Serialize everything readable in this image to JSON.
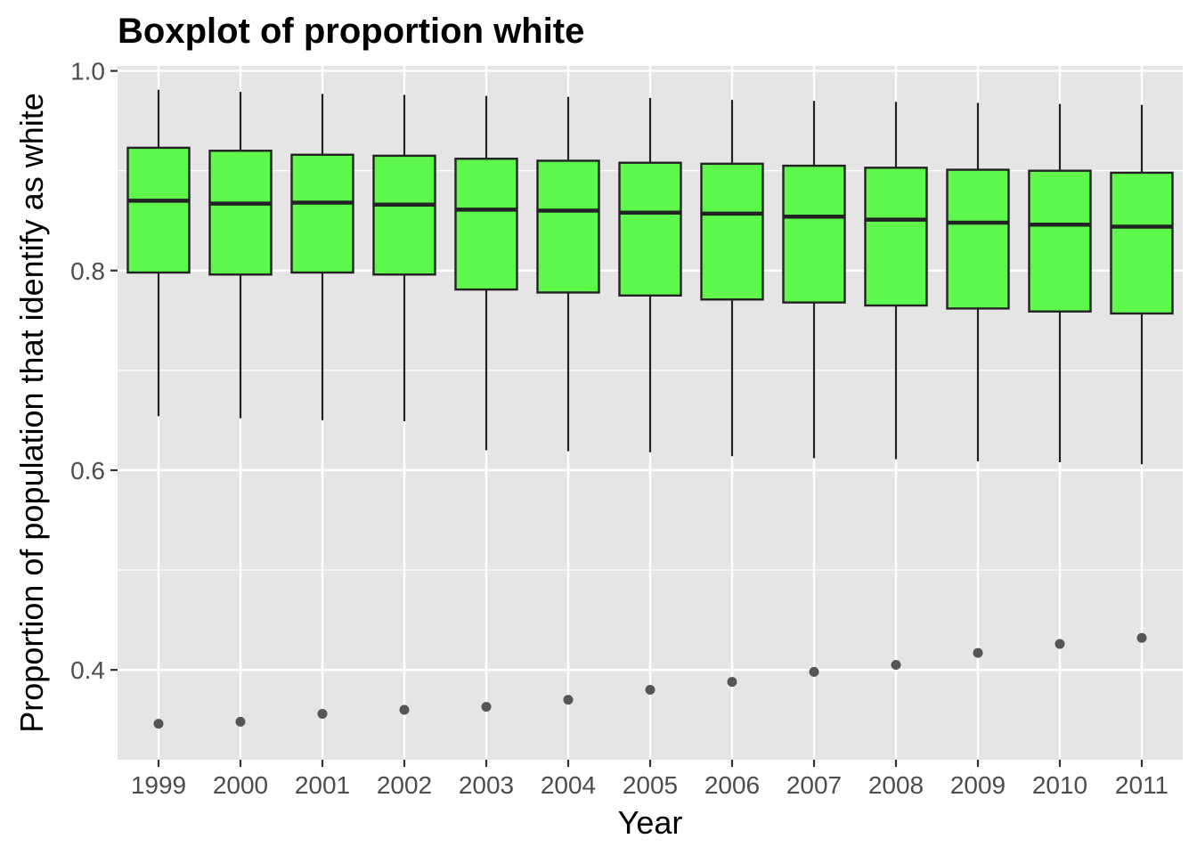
{
  "chart_data": {
    "type": "boxplot",
    "title": "Boxplot of proportion white",
    "xlabel": "Year",
    "ylabel": "Proportion of population that identify as white",
    "ylim": [
      0.31,
      1.005
    ],
    "y_ticks": [
      0.4,
      0.6,
      0.8,
      1.0
    ],
    "y_tick_labels": [
      "0.4",
      "0.6",
      "0.8",
      "1.0"
    ],
    "grid": true,
    "legend": "none",
    "colors": {
      "panel_background": "#e5e5e5",
      "grid": "#ffffff",
      "box_fill": "#5ef74c",
      "box_outline": "#222222",
      "whisker": "#222222",
      "outlier": "#555555"
    },
    "categories": [
      "1999",
      "2000",
      "2001",
      "2002",
      "2003",
      "2004",
      "2005",
      "2006",
      "2007",
      "2008",
      "2009",
      "2010",
      "2011"
    ],
    "boxes": [
      {
        "year": "1999",
        "min": 0.654,
        "q1": 0.798,
        "median": 0.87,
        "q3": 0.923,
        "max": 0.981,
        "outliers": [
          0.346
        ]
      },
      {
        "year": "2000",
        "min": 0.652,
        "q1": 0.796,
        "median": 0.867,
        "q3": 0.92,
        "max": 0.979,
        "outliers": [
          0.348
        ]
      },
      {
        "year": "2001",
        "min": 0.65,
        "q1": 0.798,
        "median": 0.868,
        "q3": 0.916,
        "max": 0.977,
        "outliers": [
          0.356
        ]
      },
      {
        "year": "2002",
        "min": 0.649,
        "q1": 0.796,
        "median": 0.866,
        "q3": 0.915,
        "max": 0.976,
        "outliers": [
          0.36
        ]
      },
      {
        "year": "2003",
        "min": 0.62,
        "q1": 0.781,
        "median": 0.861,
        "q3": 0.912,
        "max": 0.975,
        "outliers": [
          0.363
        ]
      },
      {
        "year": "2004",
        "min": 0.619,
        "q1": 0.778,
        "median": 0.86,
        "q3": 0.91,
        "max": 0.974,
        "outliers": [
          0.37
        ]
      },
      {
        "year": "2005",
        "min": 0.618,
        "q1": 0.775,
        "median": 0.858,
        "q3": 0.908,
        "max": 0.973,
        "outliers": [
          0.38
        ]
      },
      {
        "year": "2006",
        "min": 0.614,
        "q1": 0.771,
        "median": 0.857,
        "q3": 0.907,
        "max": 0.971,
        "outliers": [
          0.388
        ]
      },
      {
        "year": "2007",
        "min": 0.612,
        "q1": 0.768,
        "median": 0.854,
        "q3": 0.905,
        "max": 0.97,
        "outliers": [
          0.398
        ]
      },
      {
        "year": "2008",
        "min": 0.611,
        "q1": 0.765,
        "median": 0.851,
        "q3": 0.903,
        "max": 0.969,
        "outliers": [
          0.405
        ]
      },
      {
        "year": "2009",
        "min": 0.609,
        "q1": 0.762,
        "median": 0.848,
        "q3": 0.901,
        "max": 0.968,
        "outliers": [
          0.417
        ]
      },
      {
        "year": "2010",
        "min": 0.608,
        "q1": 0.759,
        "median": 0.846,
        "q3": 0.9,
        "max": 0.967,
        "outliers": [
          0.426
        ]
      },
      {
        "year": "2011",
        "min": 0.606,
        "q1": 0.757,
        "median": 0.844,
        "q3": 0.898,
        "max": 0.966,
        "outliers": [
          0.432
        ]
      }
    ]
  }
}
